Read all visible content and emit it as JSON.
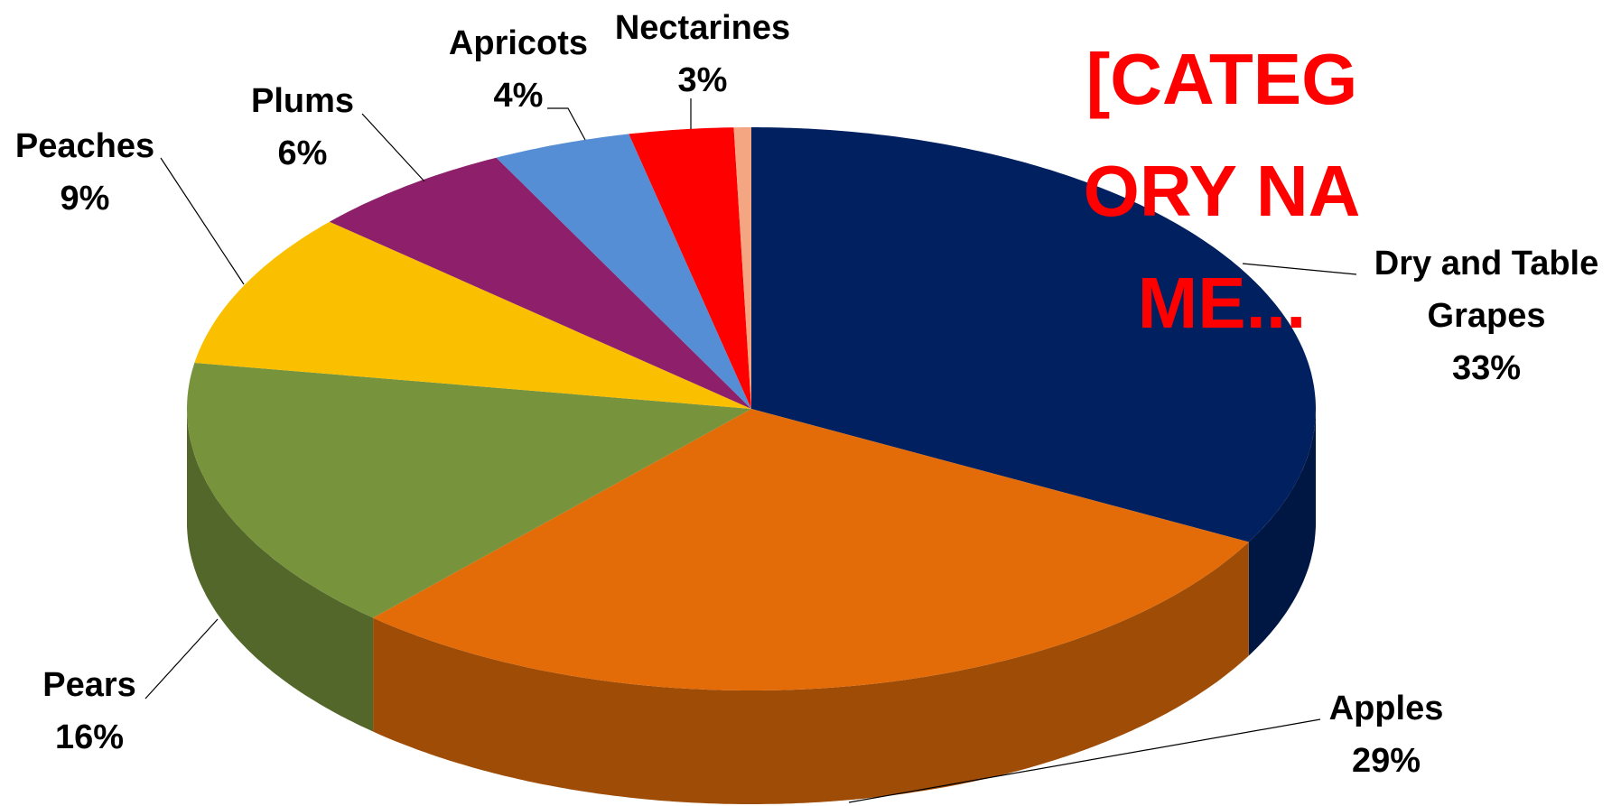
{
  "chart_data": {
    "type": "pie",
    "categories": [
      "Dry and Table Grapes",
      "Apples",
      "Pears",
      "Peaches",
      "Plums",
      "Apricots",
      "Nectarines",
      "[CATEGORY NAME..."
    ],
    "values": [
      33,
      29,
      16,
      9,
      6,
      4,
      3,
      0.5
    ],
    "value_labels": [
      "33%",
      "29%",
      "16%",
      "9%",
      "6%",
      "4%",
      "3%",
      null
    ],
    "colors": [
      "#002060",
      "#e36c09",
      "#77933c",
      "#fac000",
      "#8e1f6b",
      "#558ed5",
      "#ff0000",
      "#f4a582"
    ]
  }
}
